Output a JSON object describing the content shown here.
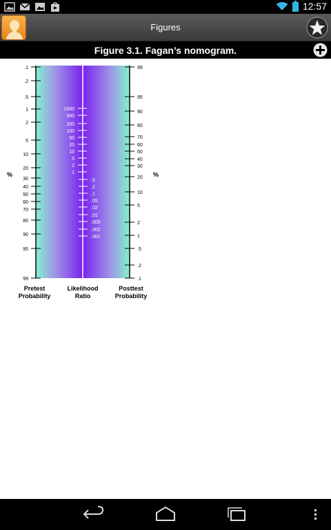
{
  "status": {
    "time": "12:57"
  },
  "actionbar": {
    "title": "Figures"
  },
  "figure": {
    "title": "Figure 3.1.  Fagan’s nomogram.",
    "pretest": {
      "ticks": [
        ".1",
        ".2",
        ".5",
        "1",
        "2",
        "5",
        "10",
        "20",
        "30",
        "40",
        "50",
        "60",
        "70",
        "80",
        "90",
        "95",
        "99"
      ],
      "axis_label_line1": "Pretest",
      "axis_label_line2": "Probability"
    },
    "likelihood": {
      "ticks": [
        "1000",
        "500",
        "200",
        "100",
        "50",
        "20",
        "10",
        "5",
        "2",
        "1",
        ".5",
        ".2",
        ".1",
        ".05",
        ".02",
        ".01",
        ".005",
        ".002",
        ".001"
      ],
      "axis_label_line1": "Likelihood",
      "axis_label_line2": "Ratio"
    },
    "posttest": {
      "ticks": [
        "99",
        "95",
        "90",
        "80",
        "70",
        "60",
        "50",
        "40",
        "30",
        "20",
        "10",
        "5",
        "2",
        "1",
        ".5",
        ".2",
        ".1"
      ],
      "axis_label_line1": "Posttest",
      "axis_label_line2": "Probability"
    },
    "percent_symbol": "%"
  },
  "icons": {
    "app": "person-avatar-icon",
    "star": "star-icon",
    "plus": "plus-circle-icon",
    "back": "back-icon",
    "home": "home-icon",
    "recents": "recents-icon",
    "menu": "overflow-menu-icon"
  }
}
